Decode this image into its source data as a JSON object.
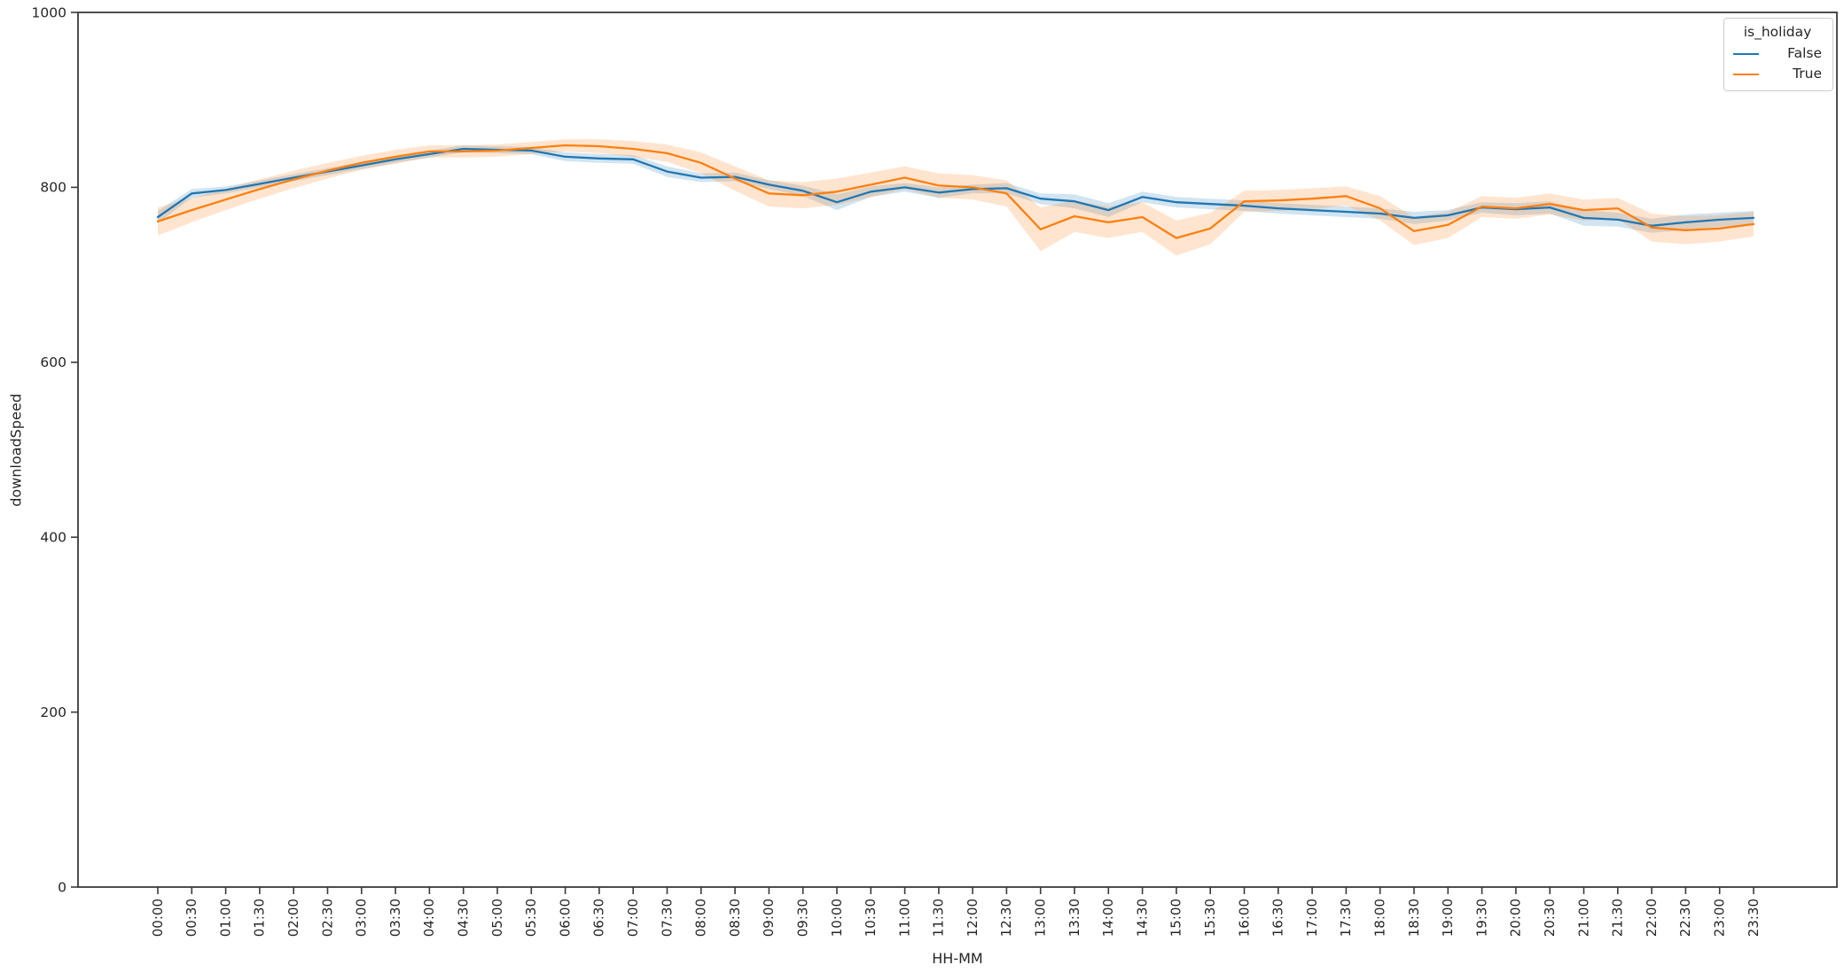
{
  "figure": {
    "background": "#ffffff",
    "spine_color": "#3a3a3a",
    "text_color": "#262626"
  },
  "axes": {
    "xlabel": "HH-MM",
    "ylabel": "downloadSpeed",
    "yticks": [
      0,
      200,
      400,
      600,
      800,
      1000
    ]
  },
  "legend": {
    "title": "is_holiday",
    "entries": [
      {
        "label": "False",
        "color": "#1f77b4"
      },
      {
        "label": "True",
        "color": "#ff7f0e"
      }
    ]
  },
  "chart_data": {
    "type": "line",
    "title": "",
    "xlabel": "HH-MM",
    "ylabel": "downloadSpeed",
    "ylim": [
      0,
      1000
    ],
    "yticks": [
      0,
      200,
      400,
      600,
      800,
      1000
    ],
    "grid": false,
    "legend_title": "is_holiday",
    "legend_position": "upper right",
    "band_opacity": 0.2,
    "x": [
      "00:00",
      "00:30",
      "01:00",
      "01:30",
      "02:00",
      "02:30",
      "03:00",
      "03:30",
      "04:00",
      "04:30",
      "05:00",
      "05:30",
      "06:00",
      "06:30",
      "07:00",
      "07:30",
      "08:00",
      "08:30",
      "09:00",
      "09:30",
      "10:00",
      "10:30",
      "11:00",
      "11:30",
      "12:00",
      "12:30",
      "13:00",
      "13:30",
      "14:00",
      "14:30",
      "15:00",
      "15:30",
      "16:00",
      "16:30",
      "17:00",
      "17:30",
      "18:00",
      "18:30",
      "19:00",
      "19:30",
      "20:00",
      "20:30",
      "21:00",
      "21:30",
      "22:00",
      "22:30",
      "23:00",
      "23:30"
    ],
    "series": [
      {
        "name": "False",
        "color": "#1f77b4",
        "values": [
          766,
          793,
          797,
          804,
          811,
          818,
          825,
          832,
          838,
          844,
          843,
          842,
          835,
          833,
          832,
          818,
          811,
          812,
          803,
          796,
          783,
          795,
          800,
          794,
          798,
          799,
          787,
          784,
          774,
          789,
          783,
          781,
          779,
          776,
          774,
          772,
          770,
          765,
          768,
          777,
          775,
          777,
          765,
          763,
          756,
          760,
          763,
          765
        ],
        "ci_lo": [
          759,
          788,
          793,
          800,
          807,
          814,
          821,
          828,
          834,
          840,
          839,
          838,
          830,
          828,
          827,
          812,
          806,
          807,
          798,
          790,
          774,
          789,
          795,
          788,
          793,
          793,
          781,
          776,
          766,
          783,
          777,
          775,
          773,
          770,
          768,
          766,
          764,
          758,
          762,
          771,
          768,
          770,
          756,
          755,
          748,
          751,
          755,
          757
        ],
        "ci_hi": [
          773,
          798,
          801,
          808,
          815,
          822,
          829,
          836,
          842,
          848,
          847,
          846,
          840,
          838,
          837,
          824,
          816,
          817,
          808,
          802,
          792,
          801,
          805,
          800,
          803,
          805,
          793,
          792,
          782,
          795,
          789,
          787,
          785,
          782,
          780,
          778,
          776,
          772,
          774,
          783,
          782,
          784,
          774,
          771,
          764,
          769,
          771,
          773
        ]
      },
      {
        "name": "True",
        "color": "#ff7f0e",
        "values": [
          761,
          774,
          786,
          798,
          809,
          819,
          828,
          835,
          841,
          841,
          842,
          845,
          848,
          847,
          844,
          839,
          828,
          810,
          793,
          791,
          795,
          803,
          811,
          802,
          800,
          793,
          752,
          767,
          760,
          766,
          742,
          753,
          784,
          785,
          787,
          790,
          776,
          750,
          757,
          778,
          776,
          781,
          774,
          776,
          754,
          751,
          753,
          758
        ],
        "ci_lo": [
          745,
          760,
          774,
          787,
          799,
          810,
          820,
          827,
          834,
          834,
          835,
          838,
          841,
          839,
          835,
          829,
          816,
          796,
          778,
          776,
          780,
          789,
          798,
          788,
          786,
          778,
          727,
          749,
          742,
          749,
          722,
          735,
          772,
          773,
          775,
          779,
          762,
          734,
          742,
          766,
          764,
          769,
          762,
          764,
          738,
          735,
          738,
          744
        ],
        "ci_hi": [
          777,
          788,
          798,
          809,
          819,
          828,
          836,
          843,
          848,
          848,
          849,
          852,
          855,
          855,
          853,
          849,
          840,
          824,
          808,
          806,
          810,
          817,
          824,
          816,
          814,
          808,
          777,
          785,
          778,
          783,
          762,
          771,
          796,
          797,
          799,
          801,
          790,
          766,
          772,
          790,
          788,
          793,
          786,
          788,
          770,
          767,
          768,
          772
        ]
      }
    ]
  }
}
